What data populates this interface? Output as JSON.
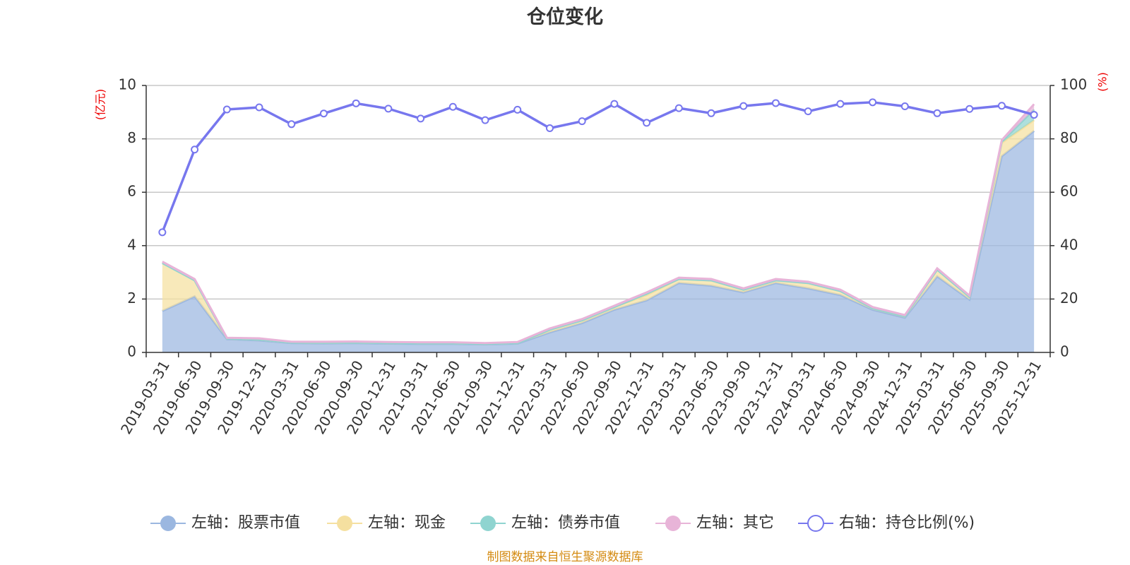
{
  "chart_data": {
    "type": "area",
    "title": "仓位变化",
    "left_axis": {
      "unit": "(亿元)",
      "ylim": [
        0,
        10
      ],
      "ticks": [
        "0",
        "2",
        "4",
        "6",
        "8",
        "10"
      ]
    },
    "right_axis": {
      "unit": "(%)",
      "ylim": [
        0,
        100
      ],
      "ticks": [
        "0",
        "20",
        "40",
        "60",
        "80",
        "100"
      ]
    },
    "categories": [
      "2019-03-31",
      "2019-06-30",
      "2019-09-30",
      "2019-12-31",
      "2020-03-31",
      "2020-06-30",
      "2020-09-30",
      "2020-12-31",
      "2021-03-31",
      "2021-06-30",
      "2021-09-30",
      "2021-12-31",
      "2022-03-31",
      "2022-06-30",
      "2022-09-30",
      "2022-12-31",
      "2023-03-31",
      "2023-06-30",
      "2023-09-30",
      "2023-12-31",
      "2024-03-31",
      "2024-06-30",
      "2024-09-30",
      "2024-12-31",
      "2025-03-31",
      "2025-06-30",
      "2025-09-30",
      "2025-12-31"
    ],
    "series": [
      {
        "name": "左轴：股票市值",
        "axis": "left",
        "stack": true,
        "color": "#9bb7e0",
        "values": [
          1.55,
          2.1,
          0.5,
          0.45,
          0.35,
          0.34,
          0.35,
          0.33,
          0.32,
          0.32,
          0.3,
          0.33,
          0.75,
          1.1,
          1.6,
          1.95,
          2.6,
          2.5,
          2.25,
          2.6,
          2.4,
          2.15,
          1.6,
          1.3,
          2.85,
          1.98,
          7.35,
          8.3
        ]
      },
      {
        "name": "左轴：现金",
        "axis": "left",
        "stack": true,
        "color": "#f5e0a0",
        "values": [
          1.8,
          0.6,
          0.02,
          0.03,
          0.02,
          0.02,
          0.02,
          0.02,
          0.02,
          0.02,
          0.02,
          0.02,
          0.1,
          0.1,
          0.1,
          0.2,
          0.15,
          0.2,
          0.1,
          0.1,
          0.2,
          0.15,
          0.05,
          0.05,
          0.25,
          0.1,
          0.5,
          0.4
        ]
      },
      {
        "name": "左轴：债券市值",
        "axis": "left",
        "stack": true,
        "color": "#8fd4d0",
        "values": [
          0,
          0,
          0,
          0,
          0,
          0,
          0,
          0,
          0,
          0,
          0,
          0,
          0,
          0,
          0,
          0.05,
          0,
          0,
          0,
          0,
          0,
          0,
          0,
          0,
          0,
          0,
          0.05,
          0.4
        ]
      },
      {
        "name": "左轴：其它",
        "axis": "left",
        "stack": true,
        "color": "#e8b4d8",
        "values": [
          0.05,
          0.05,
          0.03,
          0.05,
          0.03,
          0.04,
          0.04,
          0.04,
          0.04,
          0.04,
          0.03,
          0.04,
          0.05,
          0.05,
          0.05,
          0.05,
          0.05,
          0.05,
          0.05,
          0.05,
          0.05,
          0.05,
          0.05,
          0.05,
          0.05,
          0.05,
          0.05,
          0.2
        ]
      },
      {
        "name": "右轴：持仓比例(%)",
        "axis": "right",
        "type": "line",
        "color": "#7777ee",
        "values": [
          45,
          76,
          91,
          91.8,
          85.5,
          89.5,
          93.3,
          91.3,
          87.6,
          92,
          87,
          90.9,
          84,
          86.6,
          93.1,
          86,
          91.5,
          89.6,
          92.3,
          93.4,
          90.3,
          93.1,
          93.7,
          92.2,
          89.6,
          91.2,
          92.4,
          89
        ]
      }
    ],
    "legend_position": "bottom",
    "grid": true
  },
  "source_note": "制图数据来自恒生聚源数据库"
}
